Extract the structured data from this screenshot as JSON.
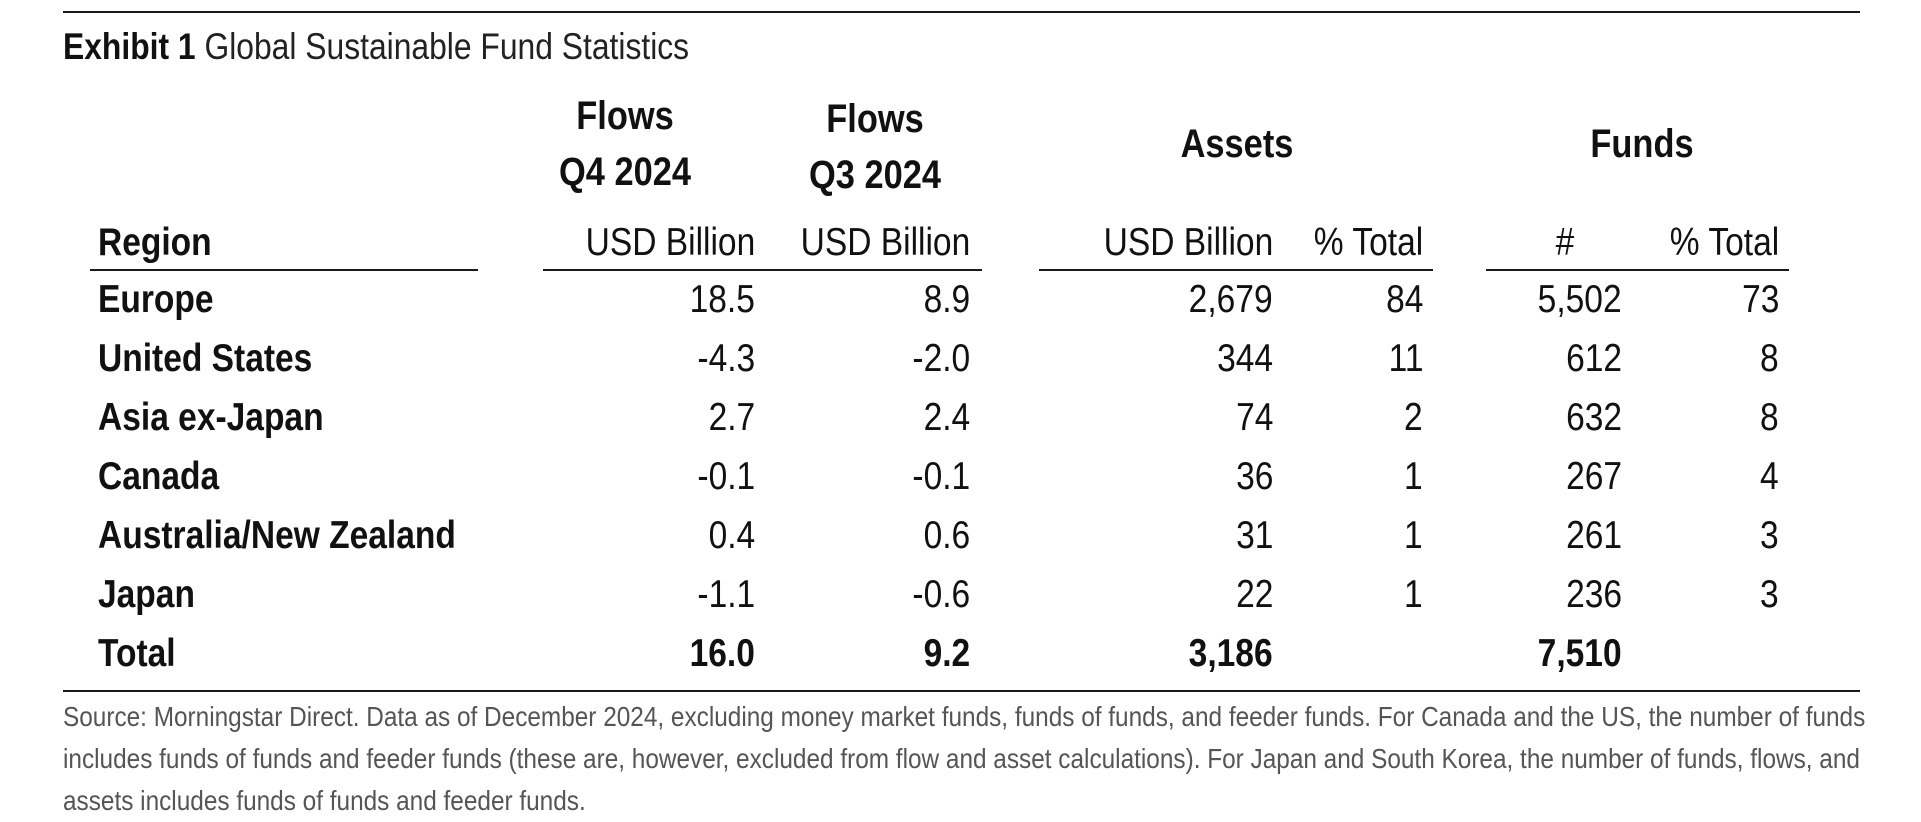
{
  "exhibit": {
    "label": "Exhibit 1",
    "title": "Global Sustainable Fund Statistics"
  },
  "headers": {
    "region": "Region",
    "flows_q4": {
      "line1": "Flows",
      "line2": "Q4 2024",
      "unit": "USD Billion"
    },
    "flows_q3": {
      "line1": "Flows",
      "line2": "Q3 2024",
      "unit": "USD Billion"
    },
    "assets": {
      "label": "Assets",
      "unit": "USD Billion",
      "pct": "% Total"
    },
    "funds": {
      "label": "Funds",
      "count": "#",
      "pct": "% Total"
    }
  },
  "rows": [
    {
      "region": "Europe",
      "flows_q4": "18.5",
      "flows_q3": "8.9",
      "assets": "2,679",
      "assets_pct": "84",
      "funds": "5,502",
      "funds_pct": "73"
    },
    {
      "region": "United States",
      "flows_q4": "-4.3",
      "flows_q3": "-2.0",
      "assets": "344",
      "assets_pct": "11",
      "funds": "612",
      "funds_pct": "8"
    },
    {
      "region": "Asia ex-Japan",
      "flows_q4": "2.7",
      "flows_q3": "2.4",
      "assets": "74",
      "assets_pct": "2",
      "funds": "632",
      "funds_pct": "8"
    },
    {
      "region": "Canada",
      "flows_q4": "-0.1",
      "flows_q3": "-0.1",
      "assets": "36",
      "assets_pct": "1",
      "funds": "267",
      "funds_pct": "4"
    },
    {
      "region": "Australia/New Zealand",
      "flows_q4": "0.4",
      "flows_q3": "0.6",
      "assets": "31",
      "assets_pct": "1",
      "funds": "261",
      "funds_pct": "3"
    },
    {
      "region": "Japan",
      "flows_q4": "-1.1",
      "flows_q3": "-0.6",
      "assets": "22",
      "assets_pct": "1",
      "funds": "236",
      "funds_pct": "3"
    }
  ],
  "total": {
    "region": "Total",
    "flows_q4": "16.0",
    "flows_q3": "9.2",
    "assets": "3,186",
    "funds": "7,510"
  },
  "source": "Source: Morningstar Direct. Data as of December 2024, excluding money market funds, funds of funds, and feeder funds. For Canada and the US, the number of funds includes funds of funds and feeder funds (these are, however, excluded from flow and asset calculations). For Japan and South Korea, the number of funds, flows, and assets includes funds of funds and feeder funds."
}
